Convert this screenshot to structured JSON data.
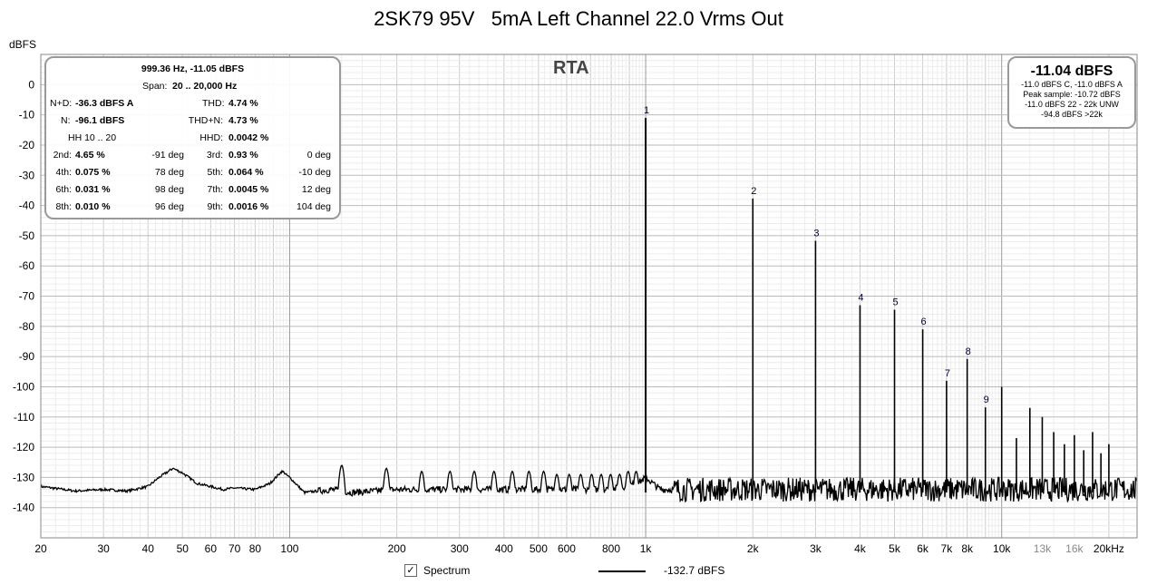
{
  "chart_data": {
    "type": "line",
    "title": "2SK79 95V   5mA Left Channel 22.0 Vrms Out",
    "panel_label": "RTA",
    "ylabel": "dBFS",
    "xscale": "log",
    "xlim": [
      20,
      24000
    ],
    "ylim": [
      -150,
      10
    ],
    "grid": true,
    "x_ticks": [
      {
        "v": 20,
        "t": "20"
      },
      {
        "v": 30,
        "t": "30"
      },
      {
        "v": 40,
        "t": "40"
      },
      {
        "v": 50,
        "t": "50"
      },
      {
        "v": 60,
        "t": "60"
      },
      {
        "v": 70,
        "t": "70"
      },
      {
        "v": 80,
        "t": "80"
      },
      {
        "v": 100,
        "t": "100"
      },
      {
        "v": 200,
        "t": "200"
      },
      {
        "v": 300,
        "t": "300"
      },
      {
        "v": 400,
        "t": "400"
      },
      {
        "v": 500,
        "t": "500"
      },
      {
        "v": 600,
        "t": "600"
      },
      {
        "v": 800,
        "t": "800"
      },
      {
        "v": 1000,
        "t": "1k"
      },
      {
        "v": 2000,
        "t": "2k"
      },
      {
        "v": 3000,
        "t": "3k"
      },
      {
        "v": 4000,
        "t": "4k"
      },
      {
        "v": 5000,
        "t": "5k"
      },
      {
        "v": 6000,
        "t": "6k"
      },
      {
        "v": 7000,
        "t": "7k"
      },
      {
        "v": 8000,
        "t": "8k"
      },
      {
        "v": 10000,
        "t": "10k"
      },
      {
        "v": 13000,
        "t": "13k",
        "gray": true
      },
      {
        "v": 16000,
        "t": "16k",
        "gray": true
      },
      {
        "v": 20000,
        "t": "20kHz"
      }
    ],
    "y_ticks": [
      {
        "v": 0,
        "t": "0"
      },
      {
        "v": -10,
        "t": "-10"
      },
      {
        "v": -20,
        "t": "-20"
      },
      {
        "v": -30,
        "t": "-30"
      },
      {
        "v": -40,
        "t": "-40"
      },
      {
        "v": -50,
        "t": "-50"
      },
      {
        "v": -60,
        "t": "-60"
      },
      {
        "v": -70,
        "t": "-70"
      },
      {
        "v": -80,
        "t": "-80"
      },
      {
        "v": -90,
        "t": "-90"
      },
      {
        "v": -100,
        "t": "-100"
      },
      {
        "v": -110,
        "t": "-110"
      },
      {
        "v": -120,
        "t": "-120"
      },
      {
        "v": -130,
        "t": "-130"
      },
      {
        "v": -140,
        "t": "-140"
      }
    ],
    "series": [
      {
        "name": "Spectrum",
        "color": "#000000",
        "noise_floor": [
          [
            20,
            -133
          ],
          [
            25,
            -134.5
          ],
          [
            30,
            -134
          ],
          [
            35,
            -134.5
          ],
          [
            40,
            -133
          ],
          [
            43,
            -130
          ],
          [
            47,
            -127
          ],
          [
            50,
            -128.5
          ],
          [
            55,
            -132
          ],
          [
            60,
            -133
          ],
          [
            65,
            -134
          ],
          [
            70,
            -133.5
          ],
          [
            80,
            -134
          ],
          [
            88,
            -132
          ],
          [
            95,
            -128
          ],
          [
            100,
            -130
          ],
          [
            110,
            -135
          ],
          [
            130,
            -134
          ],
          [
            150,
            -135
          ],
          [
            200,
            -134
          ],
          [
            300,
            -134
          ],
          [
            500,
            -134
          ],
          [
            800,
            -134
          ],
          [
            950,
            -132
          ],
          [
            1000,
            -130
          ],
          [
            1100,
            -134
          ],
          [
            2000,
            -134
          ],
          [
            24000,
            -134
          ]
        ],
        "peaks": [
          {
            "f": 1000,
            "db": -11.05,
            "label": "1"
          },
          {
            "f": 2000,
            "db": -37.7,
            "label": "2"
          },
          {
            "f": 3000,
            "db": -51.7,
            "label": "3"
          },
          {
            "f": 4000,
            "db": -73.0,
            "label": "4"
          },
          {
            "f": 5000,
            "db": -74.5,
            "label": "5"
          },
          {
            "f": 6000,
            "db": -81.0,
            "label": "6"
          },
          {
            "f": 7000,
            "db": -98.0,
            "label": "7"
          },
          {
            "f": 8000,
            "db": -90.8,
            "label": "8"
          },
          {
            "f": 9000,
            "db": -106.8,
            "label": "9"
          },
          {
            "f": 10000,
            "db": -100.0
          },
          {
            "f": 11000,
            "db": -117.0
          },
          {
            "f": 12000,
            "db": -107.0
          },
          {
            "f": 13000,
            "db": -110.0
          },
          {
            "f": 14000,
            "db": -115.0
          },
          {
            "f": 15000,
            "db": -119.0
          },
          {
            "f": 16000,
            "db": -116.0
          },
          {
            "f": 17000,
            "db": -121.0
          },
          {
            "f": 18000,
            "db": -115.0
          },
          {
            "f": 19000,
            "db": -122.0
          },
          {
            "f": 20000,
            "db": -119.0
          }
        ],
        "mains_spurs": [
          [
            47,
            -127
          ],
          [
            96,
            -128
          ],
          [
            140,
            -126
          ],
          [
            187,
            -127
          ],
          [
            235,
            -128
          ],
          [
            282,
            -128
          ],
          [
            330,
            -128
          ],
          [
            375,
            -128
          ],
          [
            422,
            -128
          ],
          [
            470,
            -128
          ],
          [
            517,
            -128
          ],
          [
            563,
            -129
          ],
          [
            610,
            -129
          ],
          [
            657,
            -129
          ],
          [
            705,
            -129
          ],
          [
            750,
            -129
          ],
          [
            797,
            -129
          ],
          [
            845,
            -129
          ],
          [
            893,
            -128
          ],
          [
            940,
            -128
          ]
        ]
      }
    ],
    "legend": {
      "label": "Spectrum",
      "checked": true,
      "value": "-132.7 dBFS"
    }
  },
  "info_panel": {
    "header": "999.36 Hz, -11.05 dBFS",
    "span_label": "Span:",
    "span_value": "20 .. 20,000 Hz",
    "nd_label": "N+D:",
    "nd_value": "-36.3 dBFS A",
    "thd_label": "THD:",
    "thd_value": "4.74 %",
    "n_label": "N:",
    "n_value": "-96.1 dBFS",
    "thdn_label": "THD+N:",
    "thdn_value": "4.73 %",
    "hh_label": "HH 10 .. 20",
    "hhd_label": "HHD:",
    "hhd_value": "0.0042 %",
    "harmonics": [
      {
        "l1": "2nd:",
        "v1": "4.65 %",
        "p1": "-91 deg",
        "l2": "3rd:",
        "v2": "0.93 %",
        "p2": "0 deg"
      },
      {
        "l1": "4th:",
        "v1": "0.075 %",
        "p1": "78 deg",
        "l2": "5th:",
        "v2": "0.064 %",
        "p2": "-10 deg"
      },
      {
        "l1": "6th:",
        "v1": "0.031 %",
        "p1": "98 deg",
        "l2": "7th:",
        "v2": "0.0045 %",
        "p2": "12 deg"
      },
      {
        "l1": "8th:",
        "v1": "0.010 %",
        "p1": "96 deg",
        "l2": "9th:",
        "v2": "0.0016 %",
        "p2": "104 deg"
      }
    ]
  },
  "level_panel": {
    "main": "-11.04 dBFS",
    "lines": [
      "-11.0 dBFS C, -11.0 dBFS A",
      "Peak sample: -10.72 dBFS",
      "-11.0 dBFS 22 - 22k UNW",
      "-94.8 dBFS >22k"
    ]
  }
}
